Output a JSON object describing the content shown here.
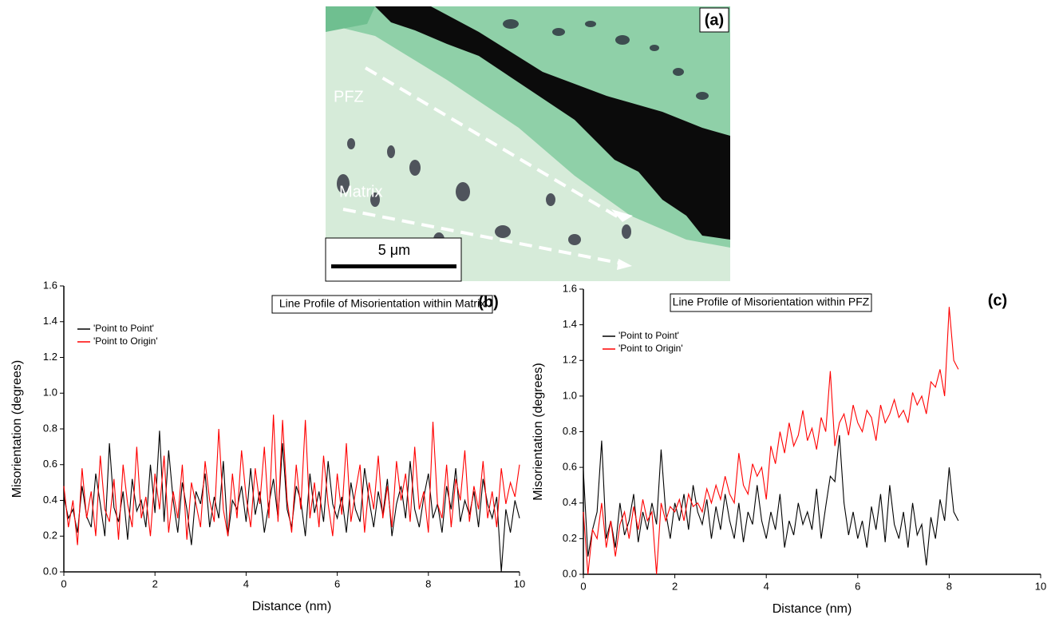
{
  "panel_a": {
    "label": "(a)",
    "labels": [
      "PFZ",
      "Matrix"
    ],
    "scale_bar": "5 μm"
  },
  "chart_data": [
    {
      "type": "line",
      "panel_label": "(b)",
      "title": "Line Profile of Misorientation within Matrix",
      "xlabel": "Distance (nm)",
      "ylabel": "Misorientation (degrees)",
      "xlim": [
        0,
        10
      ],
      "ylim": [
        0,
        1.6
      ],
      "xticks": [
        0,
        2,
        4,
        6,
        8,
        10
      ],
      "yticks": [
        {
          "value": 0,
          "label": "0.0"
        },
        0.2,
        0.4,
        0.6,
        0.8,
        {
          "value": 1,
          "label": "1.0"
        },
        1.2,
        1.4,
        1.6
      ],
      "x": [
        0,
        0.1,
        0.2,
        0.3,
        0.4,
        0.5,
        0.6,
        0.7,
        0.8,
        0.9,
        1,
        1.1,
        1.2,
        1.3,
        1.4,
        1.5,
        1.6,
        1.7,
        1.8,
        1.9,
        2,
        2.1,
        2.2,
        2.3,
        2.4,
        2.5,
        2.6,
        2.7,
        2.8,
        2.9,
        3,
        3.1,
        3.2,
        3.3,
        3.4,
        3.5,
        3.6,
        3.7,
        3.8,
        3.9,
        4,
        4.1,
        4.2,
        4.3,
        4.4,
        4.5,
        4.6,
        4.7,
        4.8,
        4.9,
        5,
        5.1,
        5.2,
        5.3,
        5.4,
        5.5,
        5.6,
        5.7,
        5.8,
        5.9,
        6,
        6.1,
        6.2,
        6.3,
        6.4,
        6.5,
        6.6,
        6.7,
        6.8,
        6.9,
        7,
        7.1,
        7.2,
        7.3,
        7.4,
        7.5,
        7.6,
        7.7,
        7.8,
        7.9,
        8,
        8.1,
        8.2,
        8.3,
        8.4,
        8.5,
        8.6,
        8.7,
        8.8,
        8.9,
        9,
        9.1,
        9.2,
        9.3,
        9.4,
        9.5,
        9.6,
        9.7,
        9.8,
        9.9,
        10
      ],
      "series": [
        {
          "name": "'Point to Point'",
          "color": "#000000",
          "values": [
            0.42,
            0.3,
            0.35,
            0.22,
            0.48,
            0.31,
            0.25,
            0.55,
            0.38,
            0.2,
            0.72,
            0.36,
            0.28,
            0.45,
            0.18,
            0.52,
            0.34,
            0.4,
            0.25,
            0.6,
            0.33,
            0.79,
            0.28,
            0.68,
            0.4,
            0.22,
            0.5,
            0.35,
            0.15,
            0.45,
            0.38,
            0.55,
            0.25,
            0.42,
            0.3,
            0.62,
            0.2,
            0.4,
            0.35,
            0.48,
            0.28,
            0.58,
            0.32,
            0.45,
            0.22,
            0.38,
            0.52,
            0.3,
            0.72,
            0.35,
            0.25,
            0.48,
            0.4,
            0.2,
            0.55,
            0.33,
            0.45,
            0.28,
            0.62,
            0.38,
            0.3,
            0.42,
            0.22,
            0.5,
            0.35,
            0.28,
            0.58,
            0.4,
            0.25,
            0.45,
            0.32,
            0.52,
            0.2,
            0.38,
            0.48,
            0.3,
            0.62,
            0.35,
            0.25,
            0.42,
            0.55,
            0.3,
            0.38,
            0.22,
            0.48,
            0.35,
            0.58,
            0.28,
            0.4,
            0.32,
            0.45,
            0.25,
            0.52,
            0.38,
            0.3,
            0.42,
            0.0,
            0.35,
            0.22,
            0.4,
            0.3
          ]
        },
        {
          "name": "'Point to Origin'",
          "color": "#ff0000",
          "values": [
            0.48,
            0.25,
            0.4,
            0.15,
            0.58,
            0.3,
            0.45,
            0.2,
            0.65,
            0.35,
            0.28,
            0.52,
            0.18,
            0.6,
            0.38,
            0.25,
            0.7,
            0.3,
            0.42,
            0.2,
            0.55,
            0.35,
            0.65,
            0.22,
            0.45,
            0.3,
            0.6,
            0.18,
            0.5,
            0.38,
            0.25,
            0.62,
            0.4,
            0.28,
            0.8,
            0.35,
            0.2,
            0.55,
            0.3,
            0.68,
            0.42,
            0.25,
            0.58,
            0.38,
            0.7,
            0.3,
            0.88,
            0.28,
            0.85,
            0.4,
            0.22,
            0.6,
            0.35,
            0.85,
            0.3,
            0.5,
            0.25,
            0.65,
            0.38,
            0.2,
            0.55,
            0.32,
            0.72,
            0.28,
            0.45,
            0.6,
            0.22,
            0.5,
            0.35,
            0.65,
            0.3,
            0.48,
            0.25,
            0.62,
            0.4,
            0.55,
            0.28,
            0.7,
            0.35,
            0.45,
            0.22,
            0.84,
            0.38,
            0.3,
            0.6,
            0.25,
            0.52,
            0.4,
            0.68,
            0.28,
            0.48,
            0.35,
            0.62,
            0.3,
            0.45,
            0.25,
            0.58,
            0.38,
            0.5,
            0.42,
            0.6
          ]
        }
      ]
    },
    {
      "type": "line",
      "panel_label": "(c)",
      "title": "Line Profile of Misorientation within PFZ",
      "xlabel": "Distance (nm)",
      "ylabel": "Misorientation (degrees)",
      "xlim": [
        0,
        10
      ],
      "ylim": [
        0,
        1.6
      ],
      "xticks": [
        0,
        2,
        4,
        6,
        8,
        10
      ],
      "yticks": [
        {
          "value": 0,
          "label": "0.0"
        },
        0.2,
        0.4,
        0.6,
        0.8,
        {
          "value": 1,
          "label": "1.0"
        },
        1.2,
        1.4,
        1.6
      ],
      "x": [
        0,
        0.1,
        0.2,
        0.3,
        0.4,
        0.5,
        0.6,
        0.7,
        0.8,
        0.9,
        1,
        1.1,
        1.2,
        1.3,
        1.4,
        1.5,
        1.6,
        1.7,
        1.8,
        1.9,
        2,
        2.1,
        2.2,
        2.3,
        2.4,
        2.5,
        2.6,
        2.7,
        2.8,
        2.9,
        3,
        3.1,
        3.2,
        3.3,
        3.4,
        3.5,
        3.6,
        3.7,
        3.8,
        3.9,
        4,
        4.1,
        4.2,
        4.3,
        4.4,
        4.5,
        4.6,
        4.7,
        4.8,
        4.9,
        5,
        5.1,
        5.2,
        5.3,
        5.4,
        5.5,
        5.6,
        5.7,
        5.8,
        5.9,
        6,
        6.1,
        6.2,
        6.3,
        6.4,
        6.5,
        6.6,
        6.7,
        6.8,
        6.9,
        7,
        7.1,
        7.2,
        7.3,
        7.4,
        7.5,
        7.6,
        7.7,
        7.8,
        7.9,
        8,
        8.1,
        8.2
      ],
      "series": [
        {
          "name": "'Point to Point'",
          "color": "#000000",
          "values": [
            0.58,
            0.1,
            0.25,
            0.35,
            0.75,
            0.2,
            0.3,
            0.15,
            0.4,
            0.22,
            0.3,
            0.45,
            0.18,
            0.35,
            0.25,
            0.4,
            0.28,
            0.7,
            0.35,
            0.2,
            0.4,
            0.3,
            0.45,
            0.25,
            0.5,
            0.35,
            0.28,
            0.42,
            0.2,
            0.38,
            0.25,
            0.45,
            0.3,
            0.2,
            0.4,
            0.18,
            0.35,
            0.28,
            0.5,
            0.3,
            0.2,
            0.35,
            0.25,
            0.45,
            0.15,
            0.3,
            0.22,
            0.4,
            0.28,
            0.35,
            0.25,
            0.48,
            0.2,
            0.38,
            0.55,
            0.52,
            0.78,
            0.4,
            0.22,
            0.35,
            0.2,
            0.3,
            0.15,
            0.38,
            0.25,
            0.45,
            0.18,
            0.5,
            0.28,
            0.2,
            0.35,
            0.15,
            0.4,
            0.22,
            0.28,
            0.05,
            0.32,
            0.2,
            0.42,
            0.3,
            0.6,
            0.35,
            0.3
          ]
        },
        {
          "name": "'Point to Origin'",
          "color": "#ff0000",
          "values": [
            0.35,
            0.0,
            0.25,
            0.2,
            0.4,
            0.15,
            0.3,
            0.1,
            0.28,
            0.35,
            0.2,
            0.38,
            0.25,
            0.42,
            0.3,
            0.35,
            0.0,
            0.4,
            0.3,
            0.38,
            0.35,
            0.42,
            0.3,
            0.45,
            0.38,
            0.4,
            0.35,
            0.48,
            0.4,
            0.5,
            0.42,
            0.55,
            0.45,
            0.4,
            0.68,
            0.5,
            0.45,
            0.62,
            0.55,
            0.6,
            0.42,
            0.72,
            0.62,
            0.8,
            0.68,
            0.85,
            0.72,
            0.78,
            0.92,
            0.75,
            0.82,
            0.7,
            0.88,
            0.8,
            1.14,
            0.72,
            0.85,
            0.9,
            0.78,
            0.95,
            0.85,
            0.8,
            0.92,
            0.88,
            0.75,
            0.95,
            0.85,
            0.9,
            0.98,
            0.88,
            0.92,
            0.85,
            1.02,
            0.95,
            1.0,
            0.9,
            1.08,
            1.05,
            1.15,
            1.0,
            1.5,
            1.2,
            1.15
          ]
        }
      ]
    }
  ]
}
